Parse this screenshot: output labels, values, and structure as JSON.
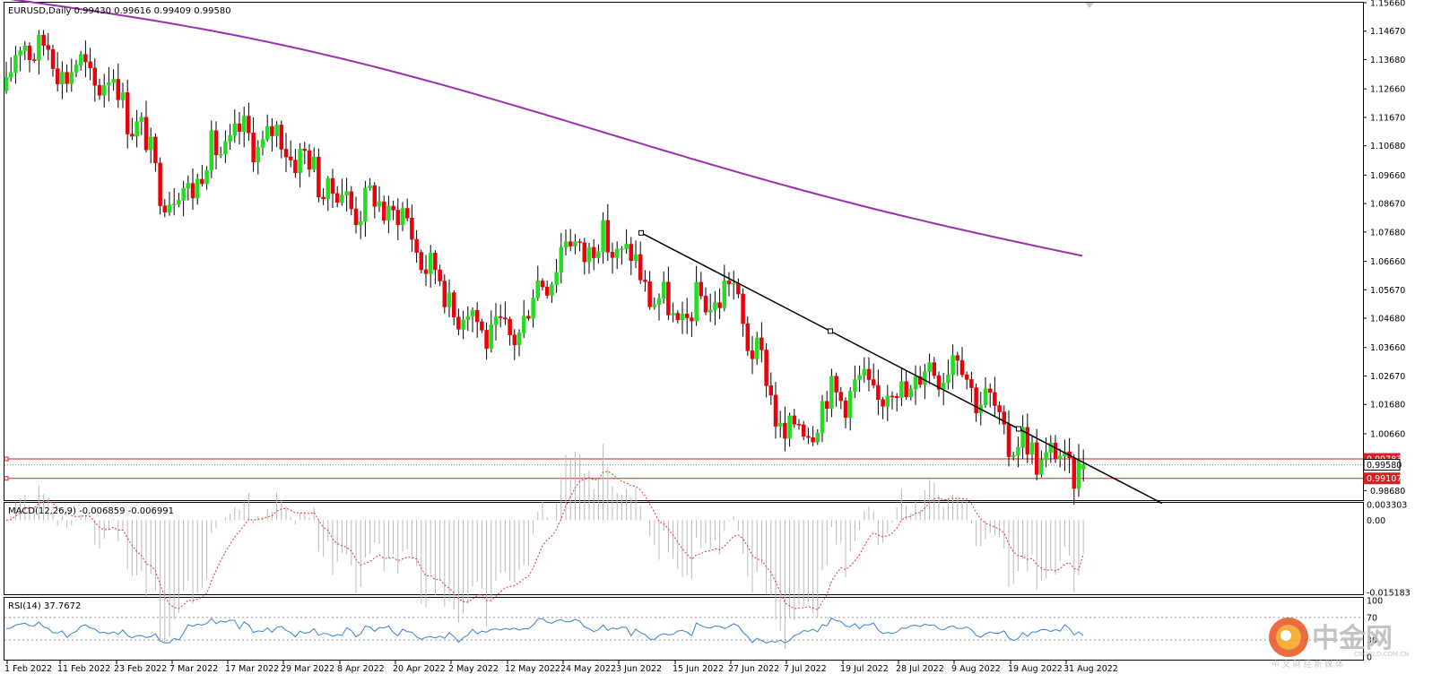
{
  "header": {
    "symbol_line": "EURUSD,Daily  0.99430 0.99616 0.99409 0.99580"
  },
  "macd": {
    "label": "MACD(12,26,9) -0.006859 -0.006991"
  },
  "rsi": {
    "label": "RSI(14) 37.7672"
  },
  "watermark": {
    "name": "中金网",
    "sub": "中 文 财 经 新 媒 体",
    "domain": "CNGOLD.COM.CN"
  },
  "colors": {
    "bull": "#22dd22",
    "bear": "#e8000b",
    "ma": "#9b2fb0",
    "trend": "#000000",
    "hline": "#d82020",
    "rsi": "#3a7fd0",
    "macd_signal": "#e0303a",
    "hist": "#b8b8b8"
  },
  "chart_data": [
    {
      "type": "candlestick",
      "title": "EURUSD,Daily",
      "ohlc_last": {
        "open": 0.9943,
        "high": 0.99616,
        "low": 0.99409,
        "close": 0.9958
      },
      "ylim": [
        0.9835,
        1.1566
      ],
      "price_ticks": [
        "1.15660",
        "1.14670",
        "1.13680",
        "1.12660",
        "1.11670",
        "1.10680",
        "1.09660",
        "1.08670",
        "1.07680",
        "1.06660",
        "1.05670",
        "1.04680",
        "1.03660",
        "1.02670",
        "1.01680",
        "1.00660",
        "0.98680"
      ],
      "date_ticks": [
        "1 Feb 2022",
        "11 Feb 2022",
        "23 Feb 2022",
        "7 Mar 2022",
        "17 Mar 2022",
        "29 Mar 2022",
        "8 Apr 2022",
        "20 Apr 2022",
        "2 May 2022",
        "12 May 2022",
        "24 May 2022",
        "3 Jun 2022",
        "15 Jun 2022",
        "27 Jun 2022",
        "7 Jul 2022",
        "19 Jul 2022",
        "28 Jul 2022",
        "9 Aug 2022",
        "19 Aug 2022",
        "31 Aug 2022"
      ],
      "price_labels": [
        {
          "text": "0.99783",
          "value": 0.99783,
          "style": "red"
        },
        {
          "text": "0.99580",
          "value": 0.9958,
          "style": "white"
        },
        {
          "text": "0.99107",
          "value": 0.99107,
          "style": "red"
        }
      ],
      "horizontal_lines": [
        0.99783,
        0.99107
      ],
      "trendline": [
        {
          "date": "3 Jun 2022",
          "value": 1.0765
        },
        {
          "date": "22 Jul 2022",
          "value": 1.0435
        },
        {
          "date": "19 Aug 2022",
          "value": 1.0083
        }
      ],
      "ma_line": {
        "from": 1.158,
        "to": 1.0695
      },
      "sampled_closes": [
        {
          "date": "1 Feb 2022",
          "close": 1.126
        },
        {
          "date": "4 Feb 2022",
          "close": 1.145
        },
        {
          "date": "11 Feb 2022",
          "close": 1.135
        },
        {
          "date": "23 Feb 2022",
          "close": 1.128
        },
        {
          "date": "7 Mar 2022",
          "close": 1.087
        },
        {
          "date": "17 Mar 2022",
          "close": 1.109
        },
        {
          "date": "29 Mar 2022",
          "close": 1.109
        },
        {
          "date": "8 Apr 2022",
          "close": 1.088
        },
        {
          "date": "20 Apr 2022",
          "close": 1.085
        },
        {
          "date": "2 May 2022",
          "close": 1.052
        },
        {
          "date": "12 May 2022",
          "close": 1.038
        },
        {
          "date": "24 May 2022",
          "close": 1.072
        },
        {
          "date": "3 Jun 2022",
          "close": 1.072
        },
        {
          "date": "15 Jun 2022",
          "close": 1.045
        },
        {
          "date": "27 Jun 2022",
          "close": 1.058
        },
        {
          "date": "7 Jul 2022",
          "close": 1.005
        },
        {
          "date": "19 Jul 2022",
          "close": 1.022
        },
        {
          "date": "28 Jul 2022",
          "close": 1.021
        },
        {
          "date": "9 Aug 2022",
          "close": 1.034
        },
        {
          "date": "19 Aug 2022",
          "close": 1.004
        },
        {
          "date": "31 Aug 2022",
          "close": 0.9958
        }
      ]
    },
    {
      "type": "macd",
      "label": "MACD(12,26,9) -0.006859 -0.006991",
      "ticks": [
        "0.003303",
        "0.00",
        "-0.015183"
      ],
      "macd": -0.006859,
      "signal": -0.006991
    },
    {
      "type": "line",
      "label": "RSI(14) 37.7672",
      "value": 37.7672,
      "ticks": [
        "100",
        "70",
        "30",
        "0"
      ],
      "ylim": [
        0,
        100
      ]
    }
  ]
}
